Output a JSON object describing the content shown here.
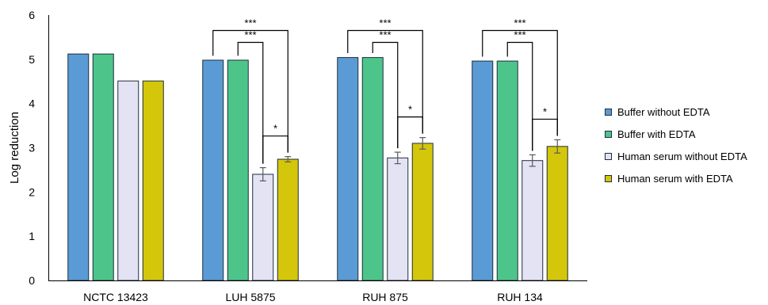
{
  "chart_data": {
    "type": "bar",
    "title": "",
    "xlabel": "",
    "ylabel": "Log reduction",
    "ylim": [
      0,
      6
    ],
    "yticks": [
      "0",
      "1",
      "2",
      "3",
      "4",
      "5",
      "6"
    ],
    "grid": false,
    "legend_position": "right",
    "categories": [
      "NCTC 13423",
      "LUH 5875",
      "RUH 875",
      "RUH 134"
    ],
    "series": [
      {
        "name": "Buffer without EDTA",
        "color": "#5b9bd5",
        "values": [
          5.12,
          4.98,
          5.04,
          4.96
        ],
        "errors": [
          0.01,
          0.01,
          0.01,
          0.01
        ]
      },
      {
        "name": "Buffer with EDTA",
        "color": "#4dc58a",
        "values": [
          5.12,
          4.98,
          5.04,
          4.96
        ],
        "errors": [
          0.01,
          0.01,
          0.01,
          0.01
        ]
      },
      {
        "name": "Human serum without EDTA",
        "color": "#e3e3f4",
        "values": [
          4.51,
          2.4,
          2.77,
          2.71
        ],
        "errors": [
          0.0,
          0.15,
          0.13,
          0.13
        ]
      },
      {
        "name": "Human serum with EDTA",
        "color": "#d4c60a",
        "values": [
          4.51,
          2.74,
          3.1,
          3.03
        ],
        "errors": [
          0.0,
          0.06,
          0.13,
          0.15
        ]
      }
    ],
    "annotations": [
      {
        "category": 1,
        "from_series": 0,
        "to_series": 3,
        "label": "***"
      },
      {
        "category": 1,
        "from_series": 1,
        "to_series": 2,
        "label": "***"
      },
      {
        "category": 1,
        "from_series": 2,
        "to_series": 3,
        "label": "*"
      },
      {
        "category": 2,
        "from_series": 0,
        "to_series": 3,
        "label": "***"
      },
      {
        "category": 2,
        "from_series": 1,
        "to_series": 2,
        "label": "***"
      },
      {
        "category": 2,
        "from_series": 2,
        "to_series": 3,
        "label": "*"
      },
      {
        "category": 3,
        "from_series": 0,
        "to_series": 3,
        "label": "***"
      },
      {
        "category": 3,
        "from_series": 1,
        "to_series": 2,
        "label": "***"
      },
      {
        "category": 3,
        "from_series": 2,
        "to_series": 3,
        "label": "*"
      }
    ]
  }
}
